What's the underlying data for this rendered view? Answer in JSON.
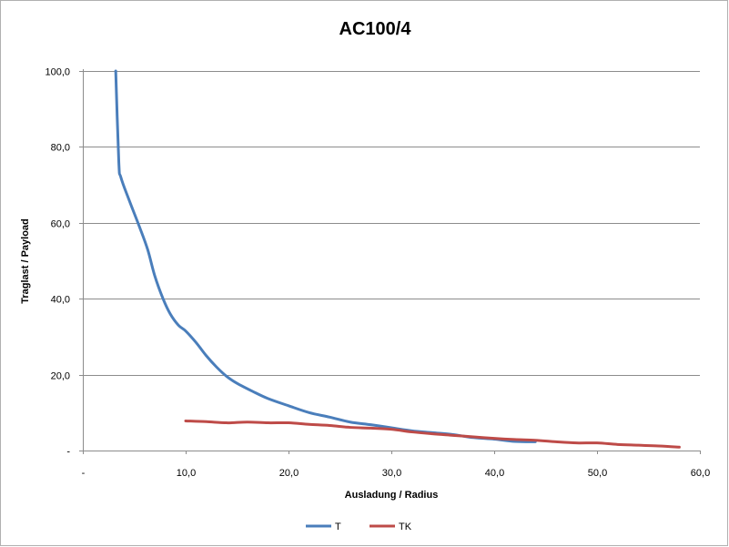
{
  "chart_data": {
    "type": "line",
    "title": "AC100/4",
    "xlabel": "Ausladung / Radius",
    "ylabel": "Traglast / Payload",
    "xlim": [
      0,
      60
    ],
    "ylim": [
      0,
      100
    ],
    "x_ticks": [
      {
        "value": 0,
        "label": "-"
      },
      {
        "value": 10,
        "label": "10,0"
      },
      {
        "value": 20,
        "label": "20,0"
      },
      {
        "value": 30,
        "label": "30,0"
      },
      {
        "value": 40,
        "label": "40,0"
      },
      {
        "value": 50,
        "label": "50,0"
      },
      {
        "value": 60,
        "label": "60,0"
      }
    ],
    "y_ticks": [
      {
        "value": 0,
        "label": "-"
      },
      {
        "value": 20,
        "label": "20,0"
      },
      {
        "value": 40,
        "label": "40,0"
      },
      {
        "value": 60,
        "label": "60,0"
      },
      {
        "value": 80,
        "label": "80,0"
      },
      {
        "value": 100,
        "label": "100,0"
      }
    ],
    "grid": "horizontal",
    "legend_position": "bottom",
    "series": [
      {
        "name": "T",
        "color": "#4a7ebb",
        "points": [
          [
            3.2,
            100
          ],
          [
            3.5,
            76
          ],
          [
            3.7,
            72
          ],
          [
            4.5,
            66
          ],
          [
            5.5,
            59
          ],
          [
            6.3,
            53
          ],
          [
            7.0,
            46
          ],
          [
            7.8,
            40
          ],
          [
            8.5,
            36
          ],
          [
            9.3,
            33
          ],
          [
            10.0,
            31.5
          ],
          [
            11.0,
            28.5
          ],
          [
            12.0,
            25
          ],
          [
            13.0,
            22
          ],
          [
            14.0,
            19.5
          ],
          [
            15.0,
            17.7
          ],
          [
            16.5,
            15.6
          ],
          [
            18.0,
            13.7
          ],
          [
            20.0,
            11.8
          ],
          [
            22.0,
            10
          ],
          [
            24.0,
            8.8
          ],
          [
            26.0,
            7.5
          ],
          [
            28.0,
            6.8
          ],
          [
            30.0,
            6
          ],
          [
            32.0,
            5.2
          ],
          [
            34.0,
            4.7
          ],
          [
            36.0,
            4.2
          ],
          [
            38.0,
            3.4
          ],
          [
            40.0,
            3
          ],
          [
            42.0,
            2.4
          ],
          [
            44.0,
            2.3
          ]
        ]
      },
      {
        "name": "TK",
        "color": "#be4b48",
        "points": [
          [
            10.0,
            7.8
          ],
          [
            12.0,
            7.6
          ],
          [
            14.0,
            7.3
          ],
          [
            16.0,
            7.5
          ],
          [
            18.0,
            7.3
          ],
          [
            20.0,
            7.3
          ],
          [
            22.0,
            6.9
          ],
          [
            24.0,
            6.6
          ],
          [
            26.0,
            6.1
          ],
          [
            28.0,
            5.9
          ],
          [
            30.0,
            5.6
          ],
          [
            32.0,
            4.9
          ],
          [
            34.0,
            4.4
          ],
          [
            36.0,
            4
          ],
          [
            38.0,
            3.6
          ],
          [
            40.0,
            3.2
          ],
          [
            42.0,
            2.9
          ],
          [
            44.0,
            2.7
          ],
          [
            46.0,
            2.3
          ],
          [
            48.0,
            2
          ],
          [
            50.0,
            2
          ],
          [
            52.0,
            1.6
          ],
          [
            54.0,
            1.4
          ],
          [
            56.0,
            1.2
          ],
          [
            58.0,
            0.9
          ]
        ]
      }
    ]
  }
}
